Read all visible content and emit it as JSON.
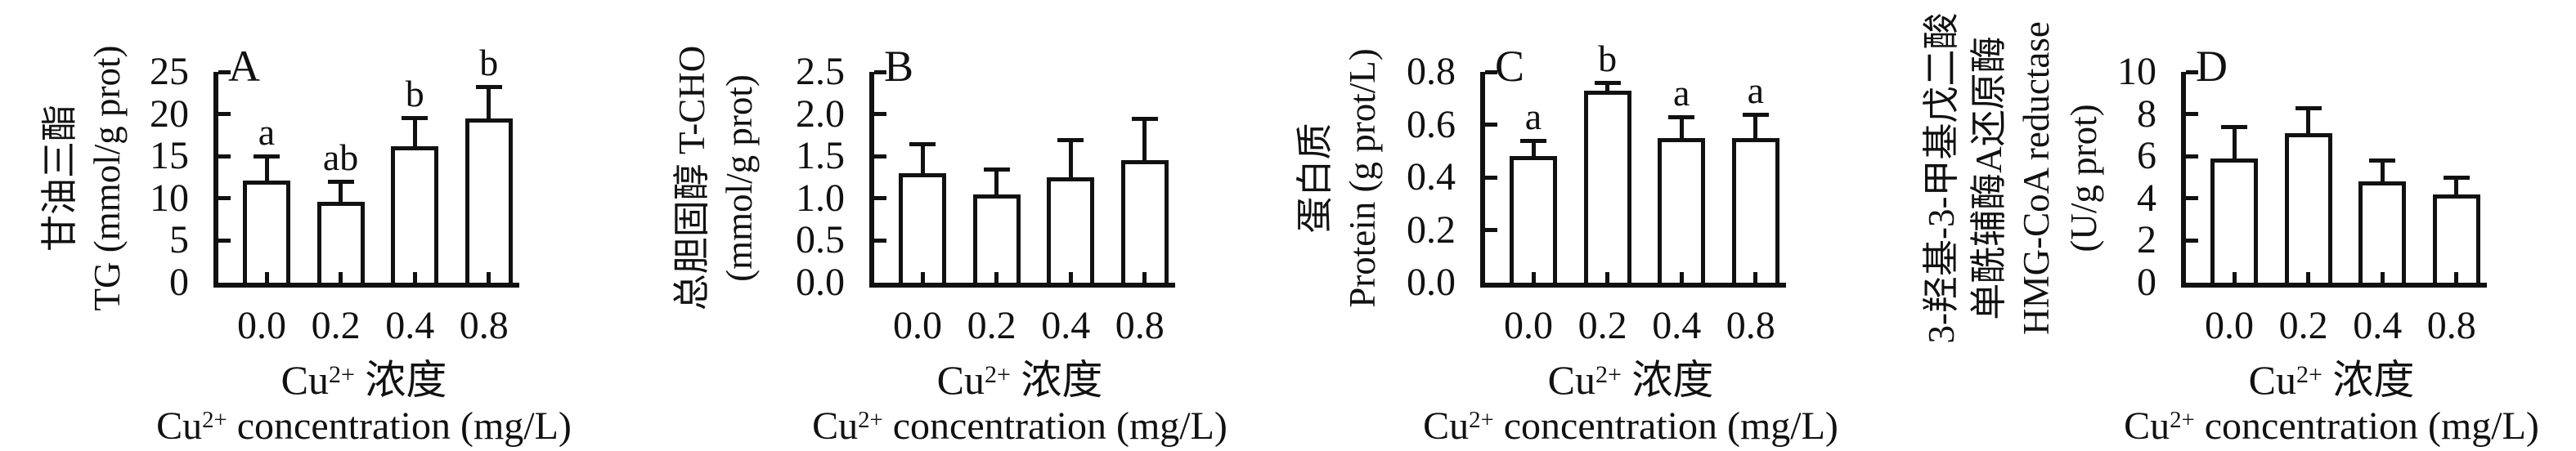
{
  "figure": {
    "background": "#ffffff",
    "ink_color": "#111111",
    "bar_fill": "#ffffff",
    "bar_edge": "#111111",
    "categories": [
      "0.0",
      "0.2",
      "0.4",
      "0.8"
    ],
    "xlabel_zh": {
      "base": "Cu",
      "sup": "2+",
      "rest": " 浓度"
    },
    "xlabel_en": {
      "base": "Cu",
      "sup": "2+",
      "rest": " concentration (mg/L)"
    }
  },
  "chart_data": [
    {
      "type": "bar",
      "panel_letter": "A",
      "ylabel_lines": [
        "甘油三酯",
        "TG (mmol/g prot)"
      ],
      "ylabel": "甘油三酯 TG (mmol/g prot)",
      "xlabel_zh": "Cu²⁺ 浓度",
      "xlabel_en": "Cu²⁺ concentration (mg/L)",
      "categories": [
        "0.0",
        "0.2",
        "0.4",
        "0.8"
      ],
      "values": [
        12.1,
        9.6,
        16.2,
        19.5
      ],
      "errors": [
        2.9,
        2.4,
        3.4,
        3.8
      ],
      "sig_letters": [
        "a",
        "ab",
        "b",
        "b"
      ],
      "ylim": [
        0,
        25
      ],
      "yticks": [
        0,
        5,
        10,
        15,
        20,
        25
      ],
      "ytick_labels": [
        "0",
        "5",
        "10",
        "15",
        "20",
        "25"
      ],
      "grid": "off",
      "legend": "none"
    },
    {
      "type": "bar",
      "panel_letter": "B",
      "ylabel_lines": [
        "总胆固醇 T-CHO",
        "(mmol/g prot)"
      ],
      "ylabel": "总胆固醇 T-CHO (mmol/g prot)",
      "xlabel_zh": "Cu²⁺ 浓度",
      "xlabel_en": "Cu²⁺ concentration (mg/L)",
      "categories": [
        "0.0",
        "0.2",
        "0.4",
        "0.8"
      ],
      "values": [
        1.3,
        1.05,
        1.25,
        1.45
      ],
      "errors": [
        0.35,
        0.3,
        0.45,
        0.5
      ],
      "sig_letters": [],
      "ylim": [
        0,
        2.5
      ],
      "yticks": [
        0,
        0.5,
        1.0,
        1.5,
        2.0,
        2.5
      ],
      "ytick_labels": [
        "0.0",
        "0.5",
        "1.0",
        "1.5",
        "2.0",
        "2.5"
      ],
      "grid": "off",
      "legend": "none"
    },
    {
      "type": "bar",
      "panel_letter": "C",
      "ylabel_lines": [
        "蛋白质",
        "Protein (g prot/L)"
      ],
      "ylabel": "蛋白质 Protein (g prot/L)",
      "xlabel_zh": "Cu²⁺ 浓度",
      "xlabel_en": "Cu²⁺ concentration (mg/L)",
      "categories": [
        "0.0",
        "0.2",
        "0.4",
        "0.8"
      ],
      "values": [
        0.48,
        0.73,
        0.55,
        0.55
      ],
      "errors": [
        0.06,
        0.03,
        0.08,
        0.09
      ],
      "sig_letters": [
        "a",
        "b",
        "a",
        "a"
      ],
      "ylim": [
        0,
        0.8
      ],
      "yticks": [
        0,
        0.2,
        0.4,
        0.6,
        0.8
      ],
      "ytick_labels": [
        "0.0",
        "0.2",
        "0.4",
        "0.6",
        "0.8"
      ],
      "grid": "off",
      "legend": "none"
    },
    {
      "type": "bar",
      "panel_letter": "D",
      "ylabel_lines": [
        "3-羟基-3-甲基戊二酸",
        "单酰辅酶A还原酶",
        "HMG-CoA reductase",
        "(U/g prot)"
      ],
      "ylabel": "3-羟基-3-甲基戊二酸单酰辅酶A还原酶 HMG-CoA reductase (U/g prot)",
      "xlabel_zh": "Cu²⁺ 浓度",
      "xlabel_en": "Cu²⁺ concentration (mg/L)",
      "categories": [
        "0.0",
        "0.2",
        "0.4",
        "0.8"
      ],
      "values": [
        5.9,
        7.1,
        4.8,
        4.2
      ],
      "errors": [
        1.5,
        1.2,
        1.0,
        0.8
      ],
      "sig_letters": [],
      "ylim": [
        0,
        10
      ],
      "yticks": [
        0,
        2,
        4,
        6,
        8,
        10
      ],
      "ytick_labels": [
        "0",
        "2",
        "4",
        "6",
        "8",
        "10"
      ],
      "grid": "off",
      "legend": "none"
    }
  ]
}
